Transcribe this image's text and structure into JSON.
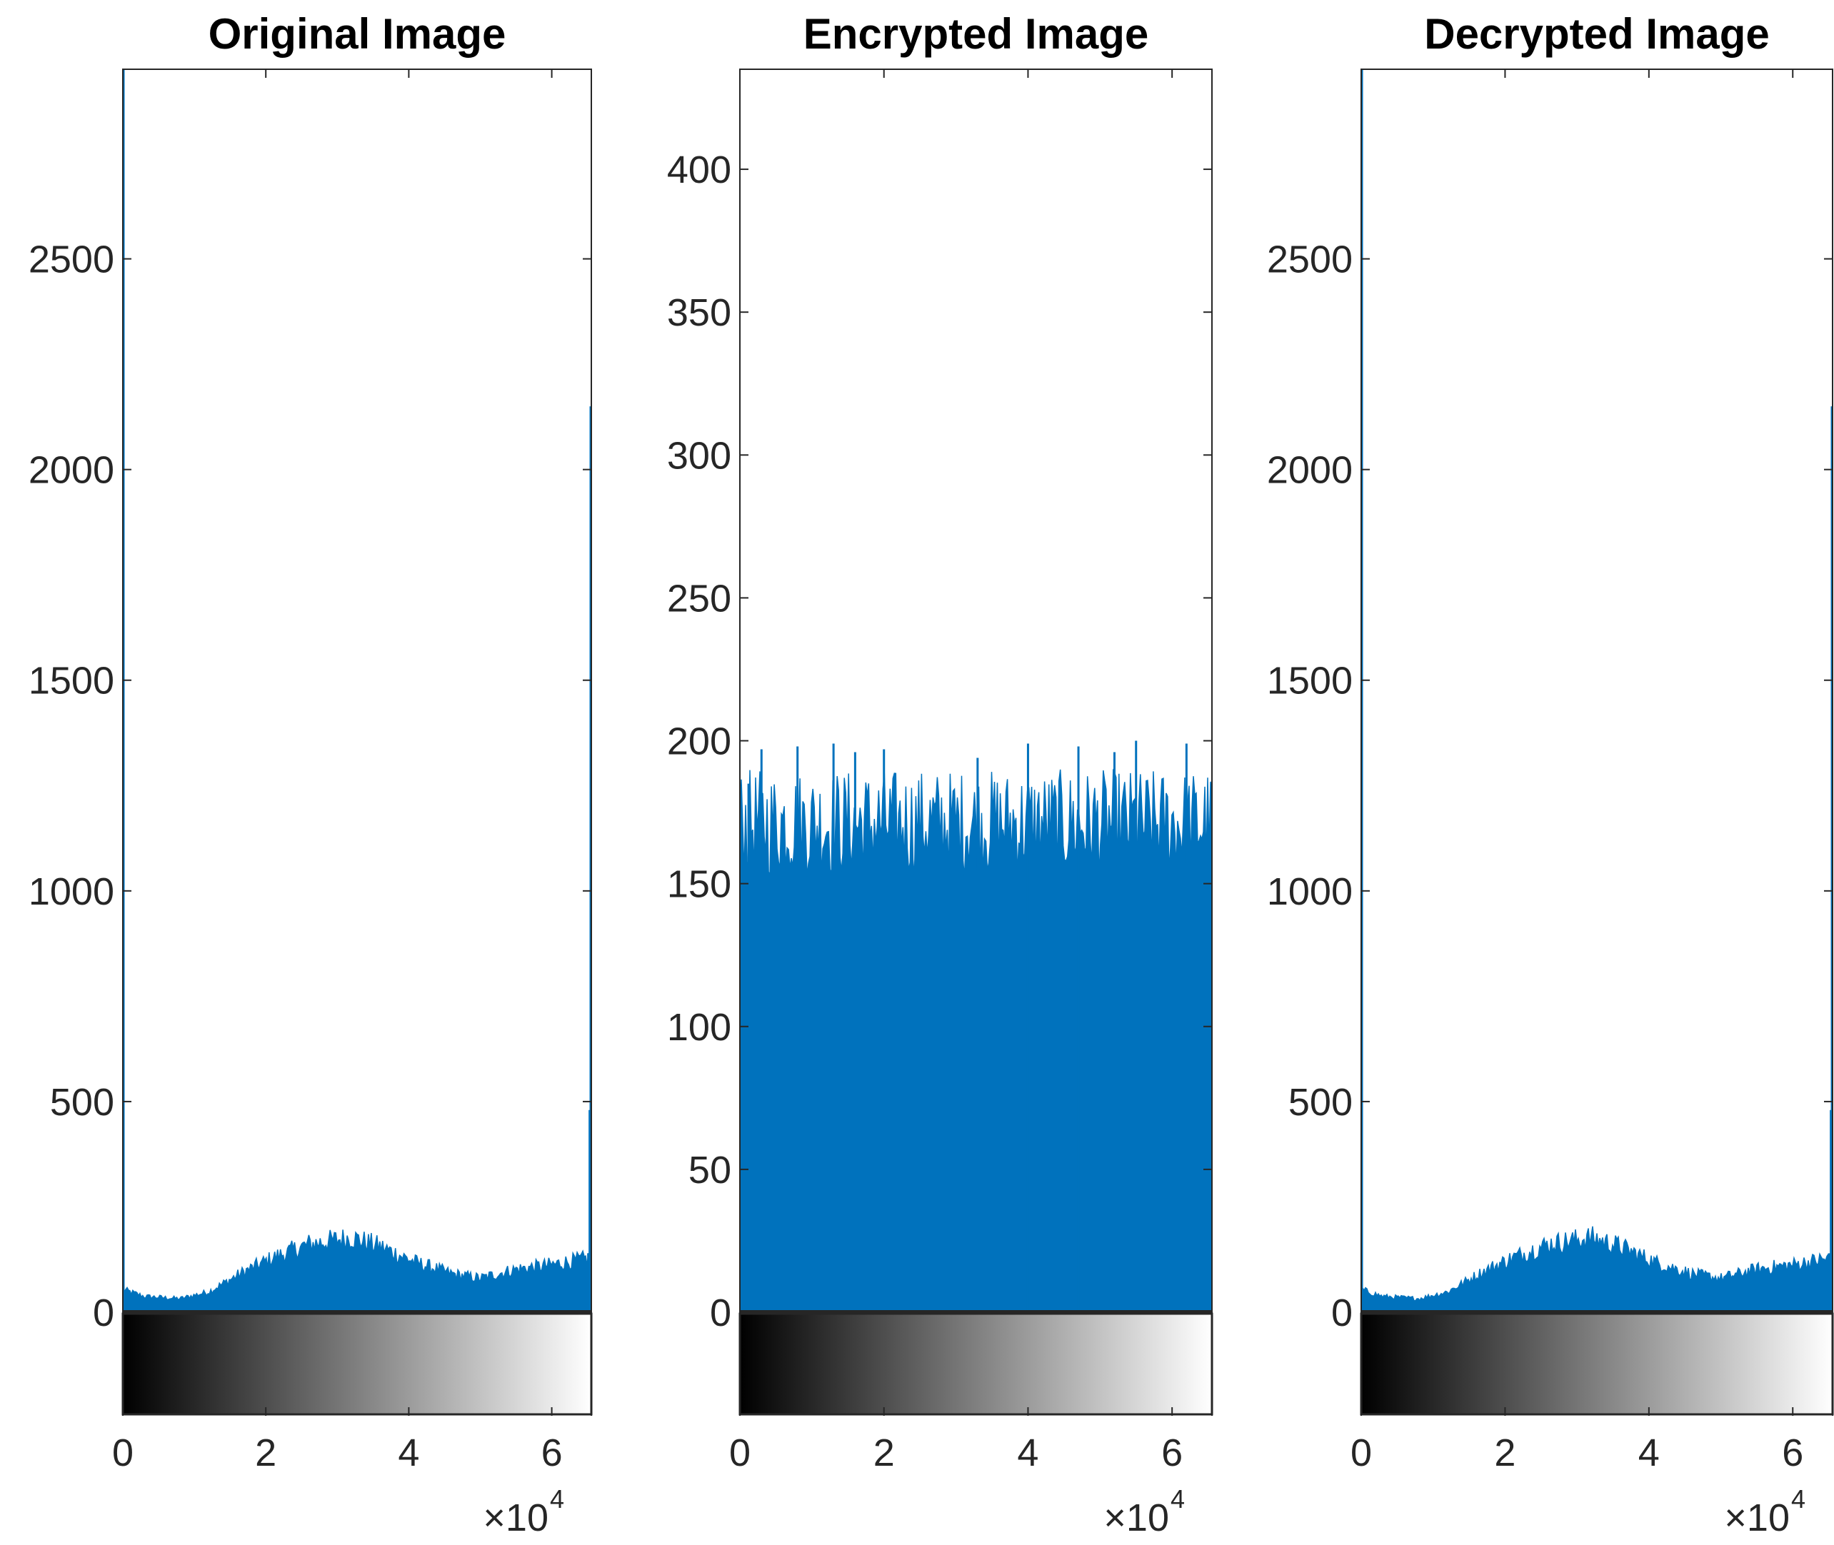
{
  "chart_data": [
    {
      "type": "bar",
      "title": "Original Image",
      "xlabel": "",
      "ylabel": "",
      "xlim": [
        0,
        65536
      ],
      "ylim": [
        0,
        2950
      ],
      "yticks": [
        "0",
        "500",
        "1000",
        "1500",
        "2000",
        "2500"
      ],
      "xticks": [
        "0",
        "2",
        "4",
        "6"
      ],
      "x_multiplier": {
        "base": "×10",
        "exponent": "4"
      },
      "color": "#0072BD",
      "colorbar": "grayscale",
      "profile": [
        {
          "x": 0,
          "y": 50
        },
        {
          "x": 3000,
          "y": 35
        },
        {
          "x": 8000,
          "y": 30
        },
        {
          "x": 12000,
          "y": 45
        },
        {
          "x": 17000,
          "y": 90
        },
        {
          "x": 21000,
          "y": 120
        },
        {
          "x": 26000,
          "y": 150
        },
        {
          "x": 32000,
          "y": 165
        },
        {
          "x": 36000,
          "y": 145
        },
        {
          "x": 41000,
          "y": 110
        },
        {
          "x": 46000,
          "y": 85
        },
        {
          "x": 50000,
          "y": 75
        },
        {
          "x": 55000,
          "y": 95
        },
        {
          "x": 60000,
          "y": 105
        },
        {
          "x": 65535,
          "y": 120
        }
      ],
      "spikes": [
        {
          "x": 0,
          "y": 2950
        },
        {
          "x": 65535,
          "y": 2150
        },
        {
          "x": 65300,
          "y": 480
        },
        {
          "x": 65100,
          "y": 140
        }
      ]
    },
    {
      "type": "bar",
      "title": "Encrypted Image",
      "xlabel": "",
      "ylabel": "",
      "xlim": [
        0,
        65536
      ],
      "ylim": [
        0,
        435
      ],
      "yticks": [
        "0",
        "50",
        "100",
        "150",
        "200",
        "250",
        "300",
        "350",
        "400"
      ],
      "xticks": [
        "0",
        "2",
        "4",
        "6"
      ],
      "x_multiplier": {
        "base": "×10",
        "exponent": "4"
      },
      "color": "#0072BD",
      "colorbar": "grayscale",
      "profile": [
        {
          "x": 0,
          "y": 160
        },
        {
          "x": 65535,
          "y": 160
        }
      ],
      "spikes": [
        {
          "x": 0,
          "y": 88
        },
        {
          "x": 65535,
          "y": 95
        },
        {
          "x": 1200,
          "y": 185
        },
        {
          "x": 3000,
          "y": 197
        },
        {
          "x": 8000,
          "y": 198
        },
        {
          "x": 13000,
          "y": 199
        },
        {
          "x": 16000,
          "y": 196
        },
        {
          "x": 20000,
          "y": 197
        },
        {
          "x": 33000,
          "y": 194
        },
        {
          "x": 40000,
          "y": 199
        },
        {
          "x": 47000,
          "y": 198
        },
        {
          "x": 52000,
          "y": 196
        },
        {
          "x": 55000,
          "y": 200
        },
        {
          "x": 62000,
          "y": 199
        }
      ]
    },
    {
      "type": "bar",
      "title": "Decrypted Image",
      "xlabel": "",
      "ylabel": "",
      "xlim": [
        0,
        65536
      ],
      "ylim": [
        0,
        2950
      ],
      "yticks": [
        "0",
        "500",
        "1000",
        "1500",
        "2000",
        "2500"
      ],
      "xticks": [
        "0",
        "2",
        "4",
        "6"
      ],
      "x_multiplier": {
        "base": "×10",
        "exponent": "4"
      },
      "color": "#0072BD",
      "colorbar": "grayscale",
      "profile": [
        {
          "x": 0,
          "y": 50
        },
        {
          "x": 3000,
          "y": 35
        },
        {
          "x": 8000,
          "y": 30
        },
        {
          "x": 12000,
          "y": 45
        },
        {
          "x": 17000,
          "y": 90
        },
        {
          "x": 21000,
          "y": 120
        },
        {
          "x": 26000,
          "y": 150
        },
        {
          "x": 32000,
          "y": 165
        },
        {
          "x": 36000,
          "y": 145
        },
        {
          "x": 41000,
          "y": 110
        },
        {
          "x": 46000,
          "y": 85
        },
        {
          "x": 50000,
          "y": 75
        },
        {
          "x": 55000,
          "y": 95
        },
        {
          "x": 60000,
          "y": 105
        },
        {
          "x": 65535,
          "y": 120
        }
      ],
      "spikes": [
        {
          "x": 0,
          "y": 2950
        },
        {
          "x": 65535,
          "y": 2150
        },
        {
          "x": 65300,
          "y": 480
        },
        {
          "x": 65100,
          "y": 140
        }
      ]
    }
  ]
}
